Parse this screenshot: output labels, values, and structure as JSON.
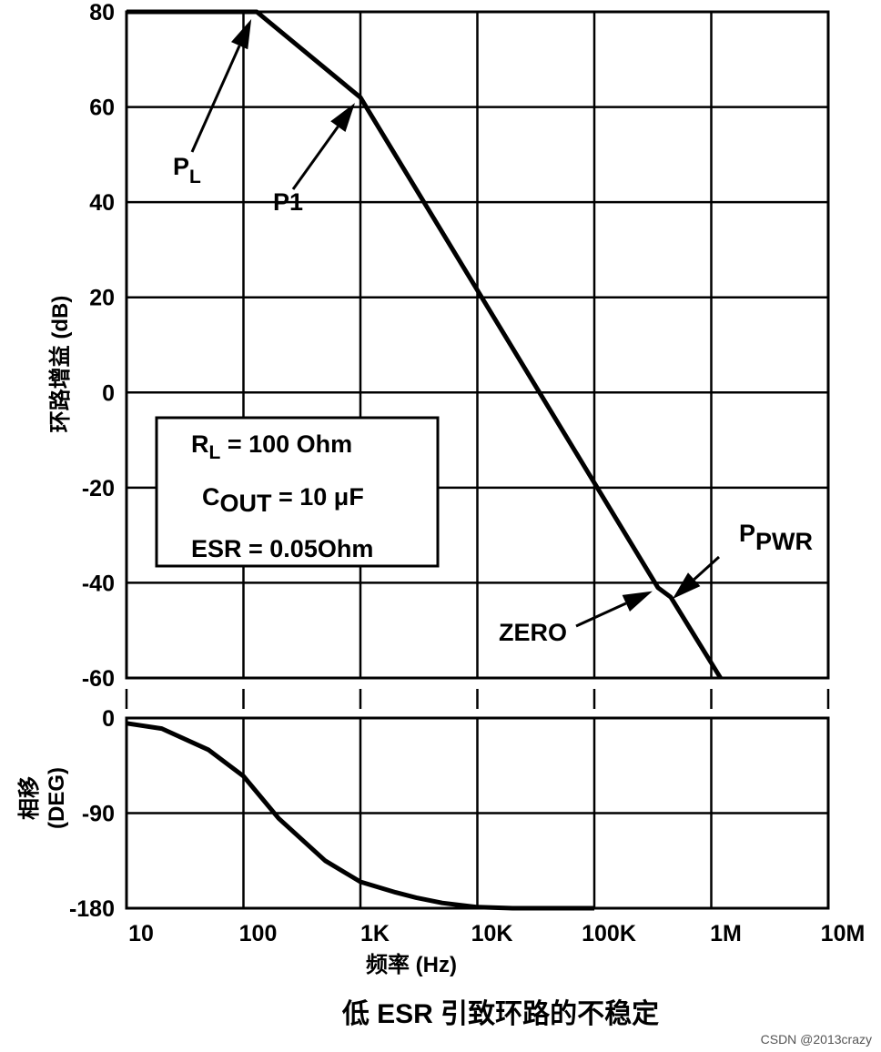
{
  "chart_data": [
    {
      "type": "line",
      "panel": "gain",
      "ylabel": "环路增益 (dB)",
      "y_scale": "linear",
      "x_scale": "log",
      "ylim": [
        -60,
        80
      ],
      "y_ticks": [
        "80",
        "60",
        "40",
        "20",
        "0",
        "-20",
        "-40",
        "-60"
      ],
      "grid": true,
      "series": [
        {
          "x": [
            10,
            130,
            1000,
            350000,
            450000,
            1200000
          ],
          "y": [
            80,
            80,
            62,
            -41,
            -43,
            -60
          ]
        }
      ],
      "annotations": [
        {
          "label": "P",
          "sub": "L",
          "x": 130,
          "y": 80
        },
        {
          "label": "P1",
          "sub": "",
          "x": 1000,
          "y": 62
        },
        {
          "label": "ZERO",
          "sub": "",
          "x": 350000,
          "y": -41
        },
        {
          "label": "P",
          "sub": "PWR",
          "x": 450000,
          "y": -43
        }
      ],
      "params_box": {
        "line1_main": "R",
        "line1_sub": "L",
        "line1_rest": " = 100 Ohm",
        "line2_main": "C",
        "line2_sub": "OUT",
        "line2_rest": " = 10 μF",
        "line3": "ESR = 0.05Ohm"
      }
    },
    {
      "type": "line",
      "panel": "phase",
      "ylabel_line1": "相移",
      "ylabel_line2": "(DEG)",
      "x_scale": "log",
      "ylim": [
        -180,
        0
      ],
      "y_ticks": [
        "0",
        "-90",
        "-180"
      ],
      "grid": true,
      "series": [
        {
          "x": [
            10,
            20,
            50,
            100,
            200,
            500,
            1000,
            2000,
            3000,
            5000,
            10000,
            20000,
            50000,
            100000
          ],
          "y": [
            -5,
            -10,
            -30,
            -55,
            -95,
            -135,
            -155,
            -165,
            -170,
            -175,
            -179,
            -180,
            -180,
            -180
          ]
        }
      ]
    }
  ],
  "x_axis": {
    "ticks": [
      "10",
      "100",
      "1K",
      "10K",
      "100K",
      "1M",
      "10M"
    ],
    "xlabel": "频率 (Hz)",
    "xlim": [
      10,
      10000000
    ]
  },
  "caption": "低 ESR 引致环路的不稳定",
  "watermark": "CSDN @2013crazy"
}
